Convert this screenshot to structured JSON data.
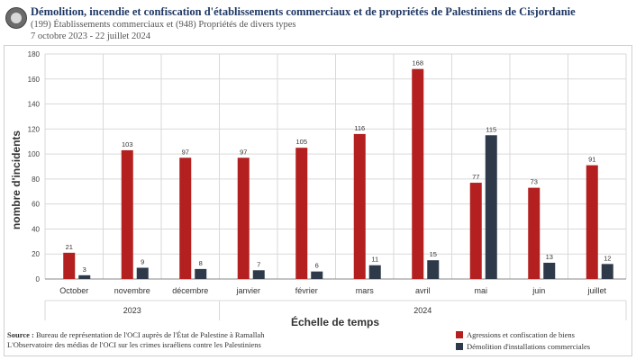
{
  "header": {
    "title": "Démolition, incendie et confiscation d'établissements commerciaux et de propriétés de Palestiniens de Cisjordanie",
    "subtitle": "(199) Établissements commerciaux  et (948) Propriétés de divers types",
    "daterange": "7 octobre 2023 - 22 juillet  2024"
  },
  "footer": {
    "source_label": "Source :",
    "source_line1": "Bureau de représentation de l'OCI auprès de l'État de Palestine à Ramallah",
    "source_line2": "L'Observatoire des médias de l'OCI sur les crimes israéliens contre les Palestiniens"
  },
  "colors": {
    "series1": "#b41f1f",
    "series2": "#2e3a4a",
    "grid": "#d9d9d9",
    "axis": "#555555"
  },
  "chart_data": {
    "type": "bar",
    "xlabel": "Échelle de temps",
    "ylabel": "nombre d'incidents",
    "ylim": [
      0,
      180
    ],
    "yticks": [
      0,
      20,
      40,
      60,
      80,
      100,
      120,
      140,
      160,
      180
    ],
    "grid": true,
    "legend": "bottom-right",
    "categories": [
      "October",
      "novembre",
      "décembre",
      "janvier",
      "février",
      "mars",
      "avril",
      "mai",
      "juin",
      "juillet"
    ],
    "groups": [
      {
        "label": "2023",
        "from": 0,
        "to": 2
      },
      {
        "label": "2024",
        "from": 3,
        "to": 9
      }
    ],
    "series": [
      {
        "name": "Agressions et confiscation de biens",
        "values": [
          21,
          103,
          97,
          97,
          105,
          116,
          168,
          77,
          73,
          91
        ]
      },
      {
        "name": "Démolition d'installations commerciales",
        "values": [
          3,
          9,
          8,
          7,
          6,
          11,
          15,
          115,
          13,
          12
        ]
      }
    ]
  }
}
